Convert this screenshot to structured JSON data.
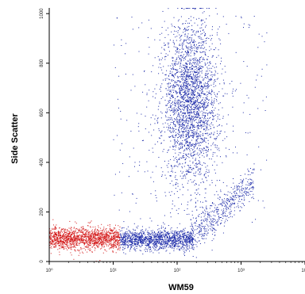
{
  "chart_data": {
    "type": "scatter",
    "xlabel": "WM59",
    "ylabel": "Side Scatter",
    "x_scale": "log",
    "xlim": [
      1,
      10000
    ],
    "ylim": [
      0,
      1023
    ],
    "x_ticks": [
      {
        "value": 1,
        "label": "10⁰"
      },
      {
        "value": 10,
        "label": "10¹"
      },
      {
        "value": 100,
        "label": "10²"
      },
      {
        "value": 1000,
        "label": "10³"
      },
      {
        "value": 10000,
        "label": "10⁴"
      }
    ],
    "y_ticks": [
      {
        "value": 0,
        "label": "0"
      },
      {
        "value": 200,
        "label": "200"
      },
      {
        "value": 400,
        "label": "400"
      },
      {
        "value": 600,
        "label": "600"
      },
      {
        "value": 800,
        "label": "800"
      },
      {
        "value": 1000,
        "label": "1000"
      }
    ],
    "populations": [
      {
        "color": "#d41c1c",
        "count": 1500,
        "x_log_range": [
          0,
          1.1
        ],
        "y_center": 95,
        "y_spread": 22
      },
      {
        "color": "#1c2aa8",
        "count": 1300,
        "x_log_range": [
          1.1,
          2.25
        ],
        "y_center": 90,
        "y_spread": 20
      },
      {
        "color": "#1c2aa8",
        "count": 2600,
        "x_log_center": 2.2,
        "x_log_spread": 0.22,
        "y_center": 640,
        "y_spread": 160
      },
      {
        "color": "#1c2aa8",
        "count": 500,
        "x_log_range": [
          2.2,
          3.2
        ],
        "y_from": 100,
        "y_to": 320,
        "y_spread": 40
      },
      {
        "color": "#1c2aa8",
        "count": 250,
        "x_log_range": [
          1.0,
          3.4
        ],
        "y_range": [
          150,
          1000
        ]
      }
    ]
  }
}
